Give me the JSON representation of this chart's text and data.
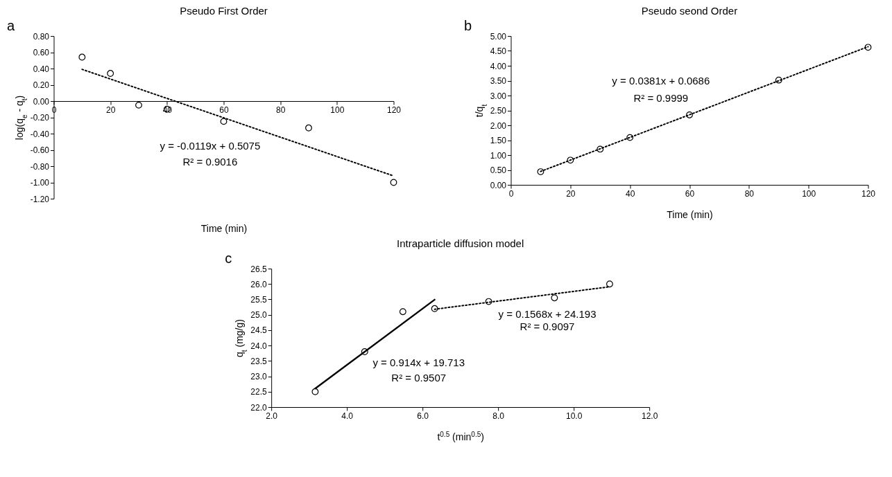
{
  "chart_data": [
    {
      "type": "scatter",
      "title": "Pseudo First Order",
      "xlabel": "Time (min)",
      "ylabel": "log(q$_{e}$ - q$_{t}$)",
      "xlim": [
        0,
        120
      ],
      "ylim": [
        -1.2,
        0.8
      ],
      "xticks": [
        0,
        20,
        40,
        60,
        80,
        100,
        120
      ],
      "yticks": [
        {
          "value": -1.2,
          "label": "-1.20"
        },
        {
          "value": -1,
          "label": "-1.00"
        },
        {
          "value": -0.8,
          "label": "-0.80"
        },
        {
          "value": -0.6,
          "label": "-0.60"
        },
        {
          "value": -0.4,
          "label": "-0.40"
        },
        {
          "value": -0.2,
          "label": "-0.20"
        },
        {
          "value": 0,
          "label": "0.00"
        },
        {
          "value": 0.2,
          "label": "0.20"
        },
        {
          "value": 0.4,
          "label": "0.40"
        },
        {
          "value": 0.6,
          "label": "0.60"
        },
        {
          "value": 0.8,
          "label": "0.80"
        }
      ],
      "grid": false,
      "annotations": [
        "a",
        "y = -0.0119x + 0.5075",
        "R² = 0.9016"
      ],
      "series": [
        {
          "marker": "circle",
          "color": "#000000",
          "x": [
            10,
            20,
            30,
            40,
            60,
            90,
            120
          ],
          "values": [
            0.54,
            0.34,
            -0.05,
            -0.1,
            -0.25,
            -0.33,
            -1.0
          ]
        },
        {
          "type": "line",
          "marker": "none",
          "color": "#000000",
          "line_style": "dotted",
          "x": [
            10,
            120
          ],
          "values": [
            0.39,
            -0.92
          ]
        }
      ]
    },
    {
      "type": "scatter",
      "title": "Pseudo seond Order",
      "xlabel": "Time (min)",
      "ylabel": "t/q$_{t}$",
      "xlim": [
        0,
        120
      ],
      "ylim": [
        0,
        5
      ],
      "xticks": [
        0,
        20,
        40,
        60,
        80,
        100,
        120
      ],
      "yticks": [
        {
          "value": 0,
          "label": "0.00"
        },
        {
          "value": 0.5,
          "label": "0.50"
        },
        {
          "value": 1,
          "label": "1.00"
        },
        {
          "value": 1.5,
          "label": "1.50"
        },
        {
          "value": 2,
          "label": "2.00"
        },
        {
          "value": 2.5,
          "label": "2.50"
        },
        {
          "value": 3,
          "label": "3.00"
        },
        {
          "value": 3.5,
          "label": "3.50"
        },
        {
          "value": 4,
          "label": "4.00"
        },
        {
          "value": 4.5,
          "label": "4.50"
        },
        {
          "value": 5,
          "label": "5.00"
        }
      ],
      "grid": false,
      "annotations": [
        "b",
        "y = 0.0381x + 0.0686",
        "R² = 0.9999"
      ],
      "series": [
        {
          "marker": "circle",
          "color": "#000000",
          "x": [
            10,
            20,
            30,
            40,
            60,
            90,
            120
          ],
          "values": [
            0.44,
            0.83,
            1.2,
            1.59,
            2.35,
            3.52,
            4.62
          ]
        },
        {
          "type": "line",
          "marker": "none",
          "color": "#000000",
          "line_style": "dotted",
          "x": [
            10,
            120
          ],
          "values": [
            0.45,
            4.64
          ]
        }
      ]
    },
    {
      "type": "scatter",
      "title": "Intraparticle diffusion model",
      "xlabel": "t$^{0.5}$ (min$^{0.5}$)",
      "ylabel": "q$_{t}$ (mg/g)",
      "xlim": [
        2,
        12
      ],
      "ylim": [
        22,
        26.5
      ],
      "xticks": [
        {
          "value": 2,
          "label": "2.0"
        },
        {
          "value": 4,
          "label": "4.0"
        },
        {
          "value": 6,
          "label": "6.0"
        },
        {
          "value": 8,
          "label": "8.0"
        },
        {
          "value": 10,
          "label": "10.0"
        },
        {
          "value": 12,
          "label": "12.0"
        }
      ],
      "yticks": [
        {
          "value": 22,
          "label": "22.0"
        },
        {
          "value": 22.5,
          "label": "22.5"
        },
        {
          "value": 23,
          "label": "23.0"
        },
        {
          "value": 23.5,
          "label": "23.5"
        },
        {
          "value": 24,
          "label": "24.0"
        },
        {
          "value": 24.5,
          "label": "24.5"
        },
        {
          "value": 25,
          "label": "25.0"
        },
        {
          "value": 25.5,
          "label": "25.5"
        },
        {
          "value": 26,
          "label": "26.0"
        },
        {
          "value": 26.5,
          "label": "26.5"
        }
      ],
      "grid": false,
      "annotations": [
        "c",
        "y = 0.914x + 19.713",
        "R² = 0.9507",
        "y = 0.1568x + 24.193",
        "R² = 0.9097"
      ],
      "series": [
        {
          "marker": "circle",
          "color": "#000000",
          "x": [
            3.16,
            4.47,
            5.48,
            6.32,
            7.75,
            9.49,
            10.95
          ],
          "values": [
            22.5,
            23.8,
            25.1,
            25.2,
            25.43,
            25.55,
            26.0
          ]
        },
        {
          "type": "line",
          "marker": "none",
          "color": "#000000",
          "line_style": "solid",
          "x": [
            3.16,
            6.32
          ],
          "values": [
            22.6,
            25.49
          ]
        },
        {
          "type": "line",
          "marker": "none",
          "color": "#000000",
          "line_style": "dotted",
          "x": [
            6.32,
            10.95
          ],
          "values": [
            25.18,
            25.91
          ]
        }
      ]
    }
  ]
}
